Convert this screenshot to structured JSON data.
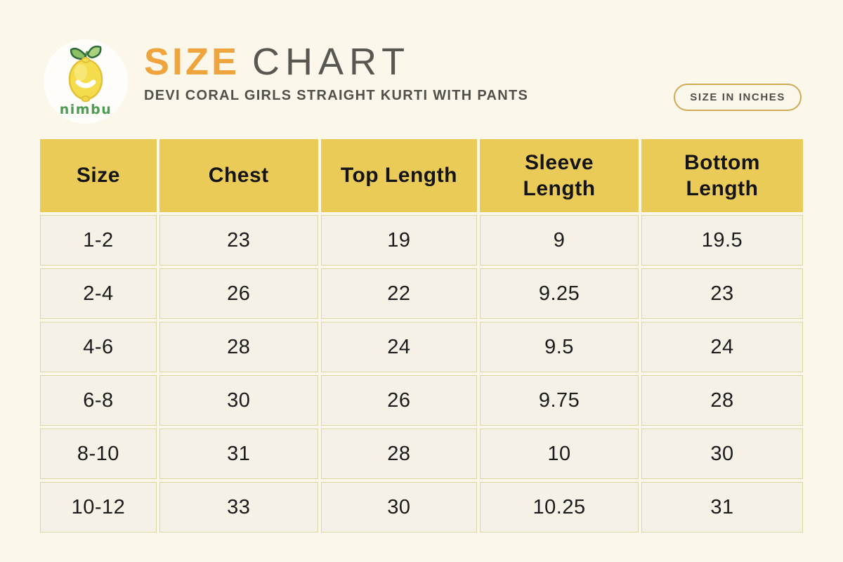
{
  "page": {
    "background": "#FBF7EA"
  },
  "branding": {
    "logo_text": "nimbu"
  },
  "header": {
    "title_primary": "SIZE",
    "title_secondary": "CHART",
    "subtitle": "DEVI CORAL GIRLS STRAIGHT KURTI WITH PANTS",
    "unit_badge": "SIZE IN INCHES"
  },
  "colors": {
    "background_cream": "#FBF7EA",
    "accent_orange": "#EFA43D",
    "title_gray": "#595751",
    "header_yellow": "#EACB58",
    "cell_cream": "#F5F1E6",
    "grid_line": "#DBD7A4",
    "badge_border": "#D0AA55",
    "text_dark": "#1B1B1B",
    "logo_green": "#4E9B52",
    "lemon_yellow": "#F4DC4C"
  },
  "chart_data": {
    "type": "table",
    "title": "SIZE CHART",
    "subtitle": "DEVI CORAL GIRLS STRAIGHT KURTI WITH PANTS",
    "unit": "inches",
    "columns": [
      "Size",
      "Chest",
      "Top Length",
      "Sleeve\nLength",
      "Bottom\nLength"
    ],
    "rows": [
      [
        "1-2",
        "23",
        "19",
        "9",
        "19.5"
      ],
      [
        "2-4",
        "26",
        "22",
        "9.25",
        "23"
      ],
      [
        "4-6",
        "28",
        "24",
        "9.5",
        "24"
      ],
      [
        "6-8",
        "30",
        "26",
        "9.75",
        "28"
      ],
      [
        "8-10",
        "31",
        "28",
        "10",
        "30"
      ],
      [
        "10-12",
        "33",
        "30",
        "10.25",
        "31"
      ]
    ]
  }
}
